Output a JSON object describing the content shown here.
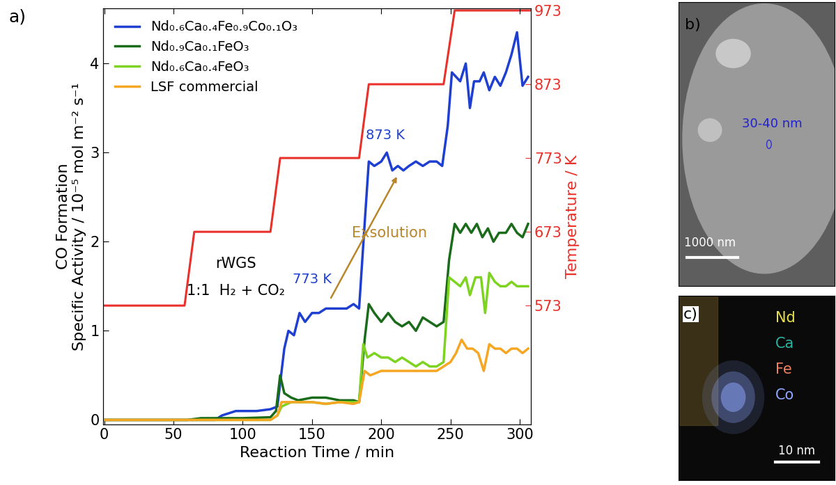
{
  "chart_data": {
    "type": "line",
    "panel": "a)",
    "xlabel": "Reaction Time / min",
    "ylabel": "CO Formation\nSpecific Activity / 10⁻⁵ mol m⁻² s⁻¹",
    "y2label": "Temperature / K",
    "xlim": [
      -1,
      308
    ],
    "xticks": [
      0,
      50,
      100,
      150,
      200,
      250,
      300
    ],
    "ylim": [
      -0.05,
      4.62
    ],
    "yticks": [
      0,
      1,
      2,
      3,
      4
    ],
    "y2lim": [
      412,
      976
    ],
    "y2ticks": [
      573,
      673,
      773,
      873,
      973
    ],
    "legend": "upper left",
    "annotations": [
      "rWGS",
      "1:1  H₂ + CO₂",
      "773 K",
      "873 K",
      "Exsolution"
    ],
    "series": [
      {
        "name": "Nd₀.₆Ca₀.₄Fe₀.₉Co₀.₁O₃",
        "color": "#1f3fd0",
        "x": [
          0,
          40,
          80,
          85,
          95,
          100,
          110,
          120,
          125,
          130,
          133,
          137,
          141,
          145,
          150,
          155,
          160,
          165,
          170,
          175,
          180,
          184,
          188,
          191,
          195,
          200,
          204,
          208,
          212,
          216,
          220,
          225,
          230,
          235,
          240,
          244,
          248,
          251,
          254,
          257,
          261,
          264,
          267,
          271,
          274,
          278,
          282,
          286,
          290,
          294,
          298,
          302,
          306
        ],
        "values": [
          0,
          0,
          0,
          0.05,
          0.1,
          0.1,
          0.1,
          0.12,
          0.15,
          0.8,
          1.0,
          0.95,
          1.2,
          1.1,
          1.2,
          1.2,
          1.25,
          1.25,
          1.25,
          1.25,
          1.3,
          1.25,
          2.2,
          2.9,
          2.85,
          2.9,
          3.0,
          2.8,
          2.85,
          2.8,
          2.85,
          2.9,
          2.85,
          2.9,
          2.9,
          2.85,
          3.3,
          3.9,
          3.85,
          3.8,
          4.0,
          3.5,
          3.8,
          3.8,
          3.9,
          3.7,
          3.85,
          3.75,
          3.9,
          4.1,
          4.35,
          3.75,
          3.85
        ]
      },
      {
        "name": "Nd₀.₉Ca₀.₁FeO₃",
        "color": "#1a6b1a",
        "x": [
          0,
          60,
          70,
          100,
          120,
          124,
          127,
          130,
          135,
          140,
          150,
          160,
          170,
          180,
          184,
          188,
          191,
          195,
          200,
          205,
          210,
          215,
          220,
          225,
          230,
          235,
          240,
          245,
          249,
          253,
          257,
          261,
          265,
          269,
          273,
          277,
          281,
          285,
          290,
          294,
          298,
          302,
          306
        ],
        "values": [
          0,
          0,
          0.02,
          0.02,
          0.03,
          0.1,
          0.5,
          0.3,
          0.25,
          0.22,
          0.25,
          0.25,
          0.22,
          0.22,
          0.2,
          0.9,
          1.3,
          1.2,
          1.1,
          1.2,
          1.1,
          1.05,
          1.1,
          1.0,
          1.15,
          1.1,
          1.05,
          1.1,
          1.8,
          2.2,
          2.1,
          2.2,
          2.1,
          2.2,
          2.05,
          2.15,
          2.0,
          2.1,
          2.1,
          2.2,
          2.1,
          2.05,
          2.2
        ]
      },
      {
        "name": "Nd₀.₆Ca₀.₄FeO₃",
        "color": "#7ed321",
        "x": [
          0,
          120,
          125,
          128,
          135,
          150,
          160,
          170,
          180,
          184,
          187,
          190,
          195,
          200,
          205,
          210,
          215,
          220,
          225,
          230,
          235,
          240,
          245,
          249,
          253,
          257,
          261,
          264,
          268,
          272,
          275,
          278,
          282,
          286,
          290,
          294,
          298,
          302,
          306
        ],
        "values": [
          0,
          0,
          0.05,
          0.15,
          0.2,
          0.2,
          0.18,
          0.2,
          0.2,
          0.2,
          0.85,
          0.7,
          0.75,
          0.7,
          0.7,
          0.65,
          0.7,
          0.65,
          0.6,
          0.65,
          0.6,
          0.6,
          0.65,
          1.6,
          1.55,
          1.5,
          1.6,
          1.4,
          1.6,
          1.6,
          1.2,
          1.65,
          1.55,
          1.5,
          1.5,
          1.55,
          1.5,
          1.5,
          1.5
        ]
      },
      {
        "name": "LSF commercial",
        "color": "#f5a623",
        "x": [
          0,
          120,
          125,
          128,
          135,
          150,
          160,
          170,
          180,
          184,
          188,
          192,
          200,
          210,
          220,
          230,
          240,
          245,
          250,
          254,
          258,
          262,
          266,
          270,
          274,
          278,
          282,
          286,
          290,
          294,
          298,
          302,
          306
        ],
        "values": [
          0,
          0,
          0.05,
          0.2,
          0.2,
          0.2,
          0.18,
          0.2,
          0.18,
          0.2,
          0.55,
          0.5,
          0.55,
          0.55,
          0.55,
          0.55,
          0.55,
          0.6,
          0.65,
          0.75,
          0.9,
          0.8,
          0.8,
          0.75,
          0.55,
          0.85,
          0.8,
          0.8,
          0.75,
          0.8,
          0.8,
          0.75,
          0.8
        ]
      },
      {
        "axis": "y2",
        "color": "#e8312a",
        "x": [
          0,
          58,
          65,
          120,
          127,
          184,
          191,
          245,
          253,
          308
        ],
        "values": [
          573,
          573,
          673,
          673,
          773,
          773,
          873,
          873,
          973,
          973
        ]
      }
    ]
  },
  "images": [
    {
      "panel": "b)",
      "annotation": "30-40 nm",
      "scale_bar": "1000 nm"
    },
    {
      "panel": "c)",
      "scale_bar": "10 nm",
      "elements": [
        {
          "name": "Nd",
          "color": "#e8e04a"
        },
        {
          "name": "Ca",
          "color": "#2bb3a0"
        },
        {
          "name": "Fe",
          "color": "#f08060"
        },
        {
          "name": "Co",
          "color": "#8fa8ff"
        }
      ]
    }
  ]
}
